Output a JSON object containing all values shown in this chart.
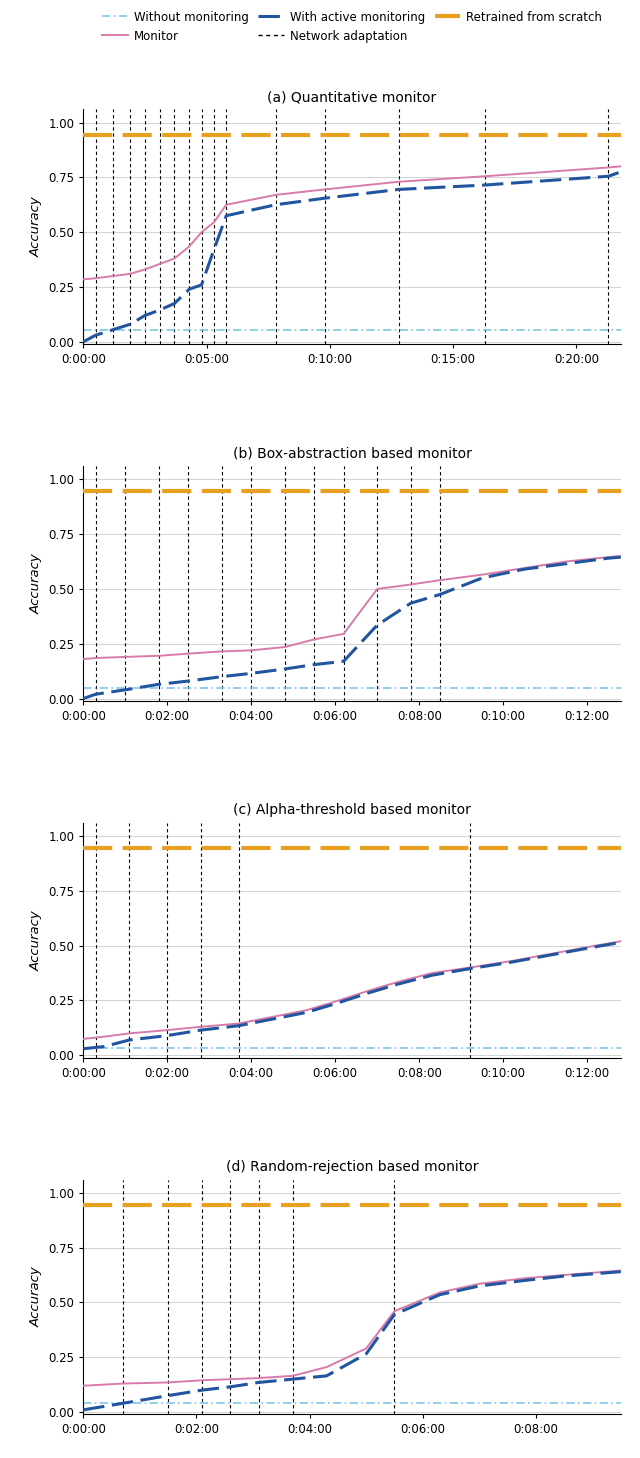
{
  "subplots": [
    {
      "title": "(a) Quantitative monitor",
      "xlim_minutes": 21.8,
      "xtick_labels": [
        "0:00:00",
        "0:05:00",
        "0:10:00",
        "0:15:00",
        "0:20:00"
      ],
      "xtick_minutes": [
        0,
        5,
        10,
        15,
        20
      ],
      "adaptation_lines_minutes": [
        0.5,
        1.2,
        1.9,
        2.5,
        3.1,
        3.7,
        4.3,
        4.8,
        5.3,
        5.8,
        7.8,
        9.8,
        12.8,
        16.3,
        21.3
      ],
      "without_monitoring": {
        "x": [
          0,
          21.8
        ],
        "y": [
          0.055,
          0.055
        ]
      },
      "retrained": {
        "x": [
          0,
          21.8
        ],
        "y": [
          0.945,
          0.945
        ]
      },
      "monitor": {
        "x": [
          0,
          0.5,
          1.2,
          1.9,
          2.5,
          3.1,
          3.7,
          4.3,
          4.8,
          5.3,
          5.8,
          7.8,
          9.8,
          12.8,
          16.3,
          21.3,
          21.8
        ],
        "y": [
          0.285,
          0.29,
          0.3,
          0.31,
          0.33,
          0.355,
          0.38,
          0.435,
          0.5,
          0.545,
          0.625,
          0.67,
          0.695,
          0.73,
          0.755,
          0.795,
          0.8
        ]
      },
      "active": {
        "x": [
          0,
          0.5,
          1.2,
          1.9,
          2.5,
          3.1,
          3.7,
          4.3,
          4.8,
          5.3,
          5.8,
          7.8,
          9.8,
          12.8,
          16.3,
          21.3,
          21.8
        ],
        "y": [
          0.0,
          0.03,
          0.055,
          0.08,
          0.12,
          0.145,
          0.175,
          0.24,
          0.26,
          0.42,
          0.575,
          0.625,
          0.655,
          0.695,
          0.715,
          0.755,
          0.775
        ]
      }
    },
    {
      "title": "(b) Box-abstraction based monitor",
      "xlim_minutes": 12.8,
      "xtick_labels": [
        "0:00:00",
        "0:02:00",
        "0:04:00",
        "0:06:00",
        "0:08:00",
        "0:10:00",
        "0:12:00"
      ],
      "xtick_minutes": [
        0,
        2,
        4,
        6,
        8,
        10,
        12
      ],
      "adaptation_lines_minutes": [
        0.3,
        1.0,
        1.8,
        2.5,
        3.3,
        4.0,
        4.8,
        5.5,
        6.2,
        7.0,
        7.8,
        8.5
      ],
      "without_monitoring": {
        "x": [
          0,
          12.8
        ],
        "y": [
          0.05,
          0.05
        ]
      },
      "retrained": {
        "x": [
          0,
          12.8
        ],
        "y": [
          0.945,
          0.945
        ]
      },
      "monitor": {
        "x": [
          0,
          0.3,
          1.0,
          1.8,
          2.5,
          3.3,
          4.0,
          4.8,
          5.5,
          6.2,
          7.0,
          7.8,
          8.5,
          9.5,
          10.5,
          11.5,
          12.5,
          12.8
        ],
        "y": [
          0.18,
          0.185,
          0.19,
          0.195,
          0.205,
          0.215,
          0.22,
          0.235,
          0.27,
          0.295,
          0.5,
          0.52,
          0.54,
          0.565,
          0.595,
          0.625,
          0.645,
          0.65
        ]
      },
      "active": {
        "x": [
          0,
          0.3,
          1.0,
          1.8,
          2.5,
          3.3,
          4.0,
          4.8,
          5.5,
          6.2,
          7.0,
          7.8,
          8.5,
          9.5,
          10.5,
          11.5,
          12.5,
          12.8
        ],
        "y": [
          0.0,
          0.02,
          0.04,
          0.065,
          0.08,
          0.1,
          0.115,
          0.135,
          0.155,
          0.17,
          0.335,
          0.435,
          0.475,
          0.55,
          0.59,
          0.615,
          0.64,
          0.645
        ]
      }
    },
    {
      "title": "(c) Alpha-threshold based monitor",
      "xlim_minutes": 12.8,
      "xtick_labels": [
        "0:00:00",
        "0:02:00",
        "0:04:00",
        "0:06:00",
        "0:08:00",
        "0:10:00",
        "0:12:00"
      ],
      "xtick_minutes": [
        0,
        2,
        4,
        6,
        8,
        10,
        12
      ],
      "adaptation_lines_minutes": [
        0.3,
        1.1,
        2.0,
        2.8,
        3.7,
        9.2
      ],
      "without_monitoring": {
        "x": [
          0,
          12.8
        ],
        "y": [
          0.035,
          0.035
        ]
      },
      "retrained": {
        "x": [
          0,
          12.8
        ],
        "y": [
          0.945,
          0.945
        ]
      },
      "monitor": {
        "x": [
          0,
          0.5,
          1.1,
          2.0,
          2.8,
          3.7,
          4.5,
          5.3,
          6.0,
          6.8,
          7.5,
          8.3,
          9.2,
          10.2,
          11.2,
          12.2,
          12.8
        ],
        "y": [
          0.075,
          0.085,
          0.1,
          0.115,
          0.13,
          0.145,
          0.175,
          0.205,
          0.245,
          0.295,
          0.335,
          0.375,
          0.4,
          0.43,
          0.465,
          0.5,
          0.52
        ]
      },
      "active": {
        "x": [
          0,
          0.5,
          1.1,
          2.0,
          2.8,
          3.7,
          4.5,
          5.3,
          6.0,
          6.8,
          7.5,
          8.3,
          9.2,
          10.2,
          11.2,
          12.2,
          12.8
        ],
        "y": [
          0.03,
          0.04,
          0.07,
          0.09,
          0.115,
          0.135,
          0.165,
          0.195,
          0.235,
          0.285,
          0.325,
          0.365,
          0.395,
          0.425,
          0.46,
          0.495,
          0.515
        ]
      }
    },
    {
      "title": "(d) Random-rejection based monitor",
      "xlim_minutes": 9.5,
      "xtick_labels": [
        "0:00:00",
        "0:02:00",
        "0:04:00",
        "0:06:00",
        "0:08:00"
      ],
      "xtick_minutes": [
        0,
        2,
        4,
        6,
        8
      ],
      "adaptation_lines_minutes": [
        0.7,
        1.5,
        2.1,
        2.6,
        3.1,
        3.7,
        5.5
      ],
      "without_monitoring": {
        "x": [
          0,
          9.5
        ],
        "y": [
          0.04,
          0.04
        ]
      },
      "retrained": {
        "x": [
          0,
          9.5
        ],
        "y": [
          0.945,
          0.945
        ]
      },
      "monitor": {
        "x": [
          0,
          0.7,
          1.5,
          2.1,
          2.6,
          3.1,
          3.7,
          4.3,
          5.0,
          5.5,
          6.3,
          7.0,
          7.8,
          8.5,
          9.0,
          9.5
        ],
        "y": [
          0.12,
          0.13,
          0.135,
          0.145,
          0.15,
          0.155,
          0.165,
          0.205,
          0.29,
          0.46,
          0.545,
          0.585,
          0.61,
          0.625,
          0.635,
          0.645
        ]
      },
      "active": {
        "x": [
          0,
          0.7,
          1.5,
          2.1,
          2.6,
          3.1,
          3.7,
          4.3,
          5.0,
          5.5,
          6.3,
          7.0,
          7.8,
          8.5,
          9.0,
          9.5
        ],
        "y": [
          0.01,
          0.04,
          0.075,
          0.1,
          0.115,
          0.135,
          0.15,
          0.165,
          0.265,
          0.445,
          0.535,
          0.575,
          0.6,
          0.62,
          0.63,
          0.64
        ]
      }
    }
  ],
  "colors": {
    "without_monitoring": "#7EC8E8",
    "monitor": "#D87BAA",
    "active": "#2255A0",
    "retrained": "#E8A020",
    "adaptation": "#000000"
  },
  "ylabel": "Accuracy",
  "yticks": [
    0.0,
    0.25,
    0.5,
    0.75,
    1.0
  ],
  "ytick_labels": [
    "0.00",
    "0.25",
    "0.50",
    "0.75",
    "1.00"
  ],
  "legend": {
    "without_monitoring": "Without monitoring",
    "monitor": "Monitor",
    "active": "With active monitoring",
    "adaptation": "Network adaptation",
    "retrained": "Retrained from scratch"
  }
}
